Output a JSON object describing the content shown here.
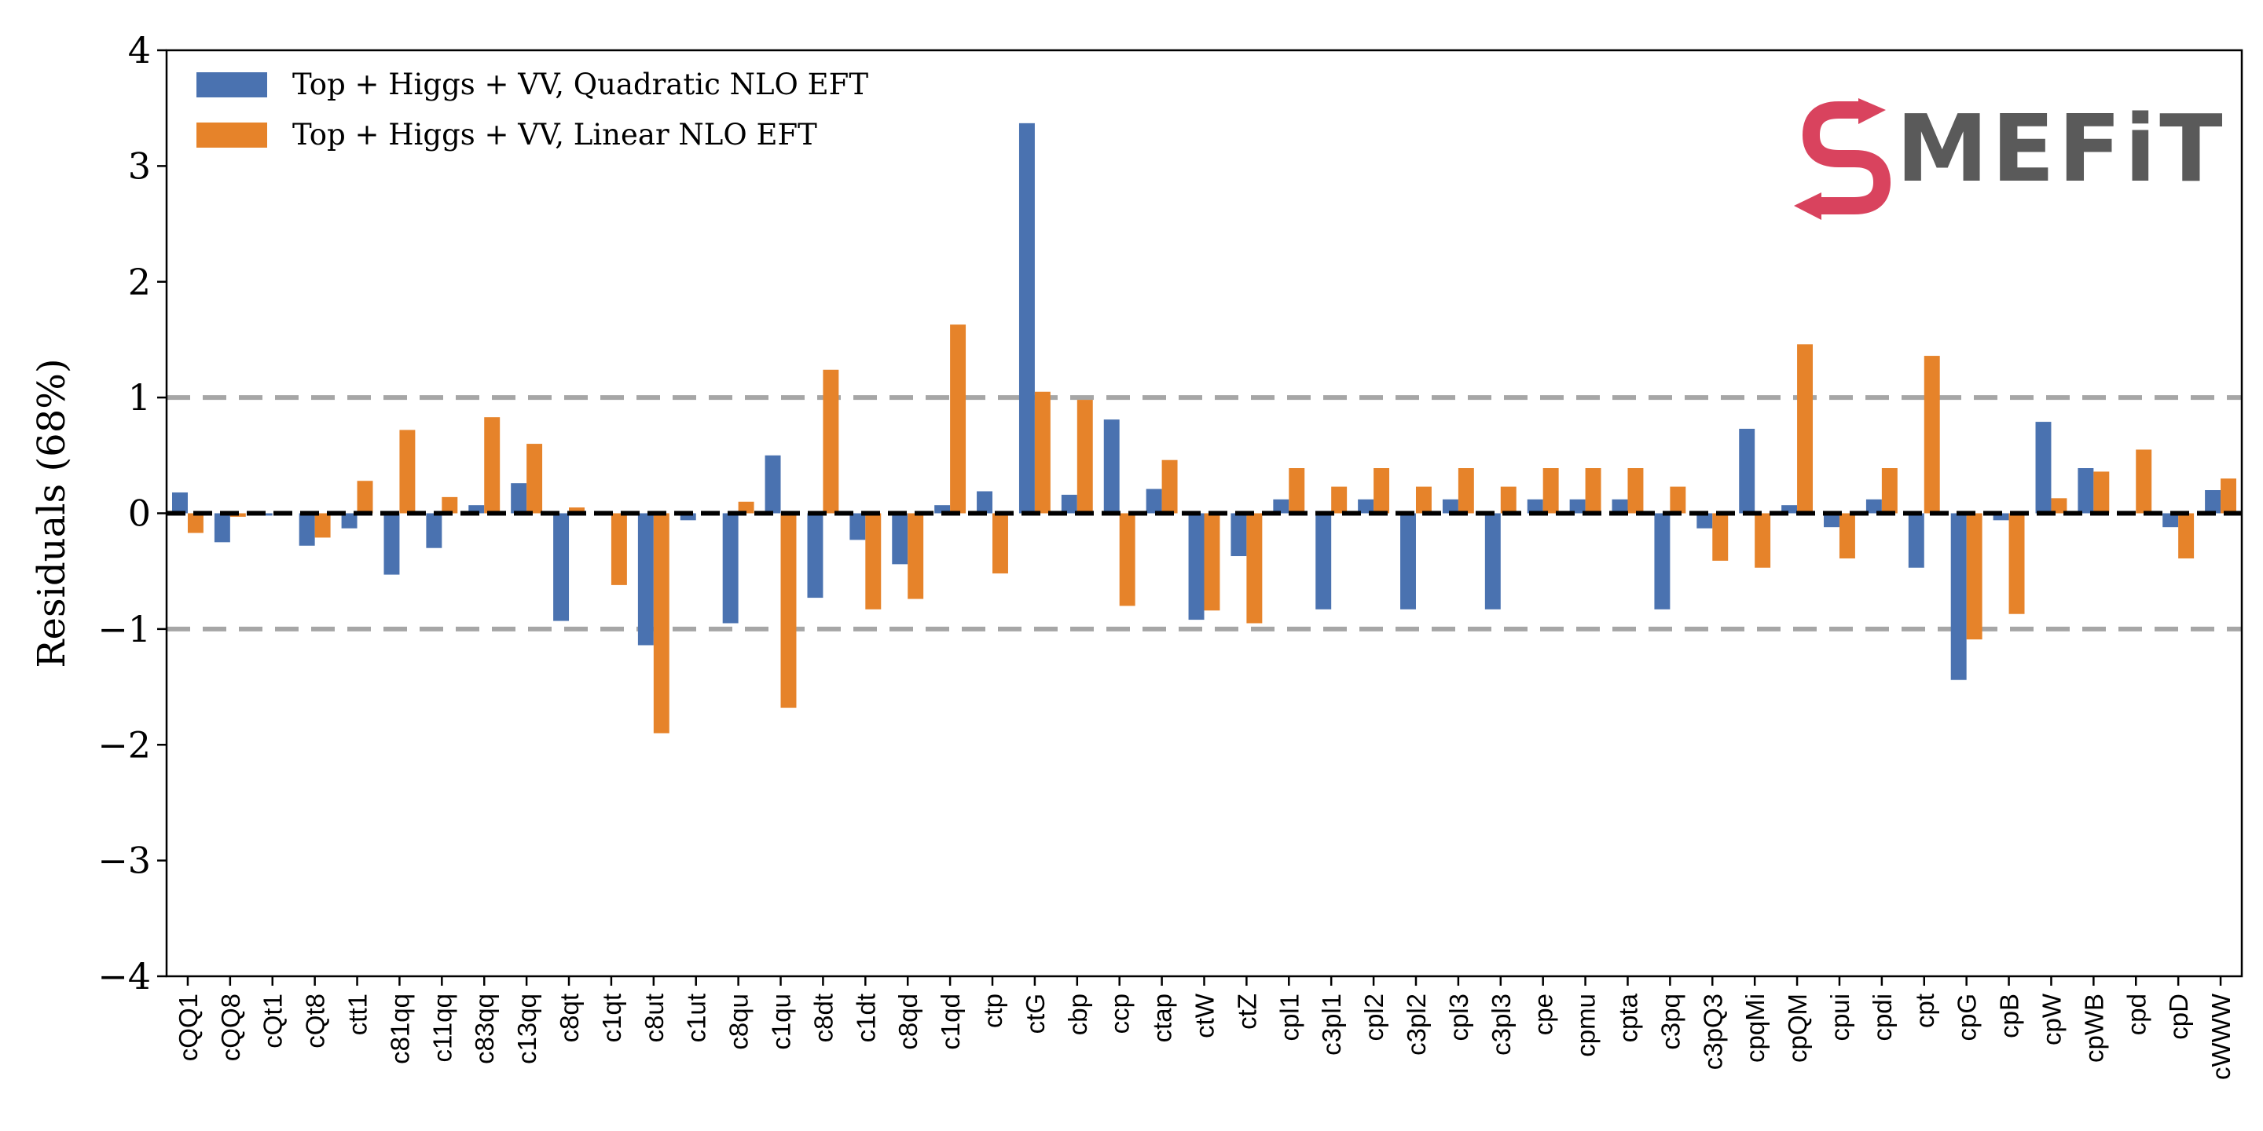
{
  "chart_data": {
    "type": "bar",
    "ylabel": "Residuals (68%)",
    "ylim": [
      -4,
      4
    ],
    "yticks": [
      "4",
      "3",
      "2",
      "1",
      "0",
      "−1",
      "−2",
      "−3",
      "−4"
    ],
    "ytick_values": [
      4,
      3,
      2,
      1,
      0,
      -1,
      -2,
      -3,
      -4
    ],
    "reference_lines": [
      1,
      0,
      -1
    ],
    "legend_position": "top-left",
    "categories": [
      "cQQ1",
      "cQQ8",
      "cQt1",
      "cQt8",
      "ctt1",
      "c81qq",
      "c11qq",
      "c83qq",
      "c13qq",
      "c8qt",
      "c1qt",
      "c8ut",
      "c1ut",
      "c8qu",
      "c1qu",
      "c8dt",
      "c1dt",
      "c8qd",
      "c1qd",
      "ctp",
      "ctG",
      "cbp",
      "ccp",
      "ctap",
      "ctW",
      "ctZ",
      "cpl1",
      "c3pl1",
      "cpl2",
      "c3pl2",
      "cpl3",
      "c3pl3",
      "cpe",
      "cpmu",
      "cpta",
      "c3pq",
      "c3pQ3",
      "cpqMi",
      "cpQM",
      "cpui",
      "cpdi",
      "cpt",
      "cpG",
      "cpB",
      "cpW",
      "cpWB",
      "cpd",
      "cpD",
      "cWWW"
    ],
    "series": [
      {
        "name": "Top + Higgs + VV,  Quadratic NLO EFT",
        "color": "#4a72b0",
        "values": [
          0.18,
          -0.25,
          -0.02,
          -0.28,
          -0.13,
          -0.53,
          -0.3,
          0.07,
          0.26,
          -0.93,
          0.0,
          -1.14,
          -0.06,
          -0.95,
          0.5,
          -0.73,
          -0.23,
          -0.44,
          0.07,
          0.19,
          3.37,
          0.16,
          0.81,
          0.21,
          -0.92,
          -0.37,
          0.12,
          -0.83,
          0.12,
          -0.83,
          0.12,
          -0.83,
          0.12,
          0.12,
          0.12,
          -0.83,
          -0.13,
          0.73,
          0.07,
          -0.12,
          0.12,
          -0.47,
          -1.44,
          -0.06,
          0.79,
          0.39,
          0.0,
          -0.12,
          0.2
        ]
      },
      {
        "name": "Top + Higgs + VV,  Linear NLO EFT",
        "color": "#e6832a",
        "values": [
          -0.17,
          -0.03,
          0.0,
          -0.21,
          0.28,
          0.72,
          0.14,
          0.83,
          0.6,
          0.05,
          -0.62,
          -1.9,
          0.0,
          0.1,
          -1.68,
          1.24,
          -0.83,
          -0.74,
          1.63,
          -0.52,
          1.05,
          0.98,
          -0.8,
          0.46,
          -0.84,
          -0.95,
          0.39,
          0.23,
          0.39,
          0.23,
          0.39,
          0.23,
          0.39,
          0.39,
          0.39,
          0.23,
          -0.41,
          -0.47,
          1.46,
          -0.39,
          0.39,
          1.36,
          -1.09,
          -0.87,
          0.13,
          0.36,
          0.55,
          -0.39,
          0.3
        ]
      }
    ]
  },
  "logo": {
    "name": "smefit-logo",
    "text": "MEFiT",
    "mark_color": "#d9435e",
    "text_color": "#5a5a5a"
  }
}
